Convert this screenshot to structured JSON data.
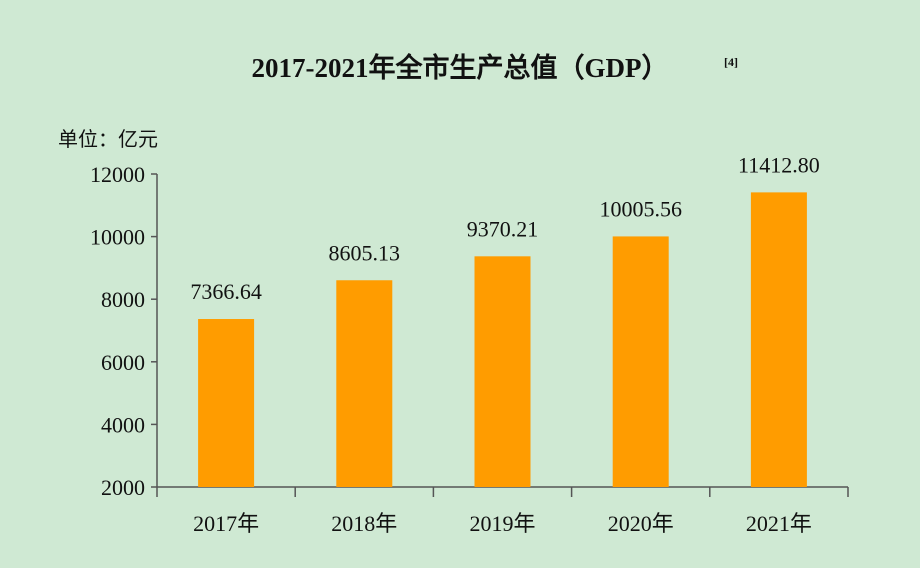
{
  "chart_data": {
    "type": "bar",
    "title": "2017-2021年全市生产总值（GDP）",
    "title_superscript": "[4]",
    "unit_label": "单位：亿元",
    "categories": [
      "2017年",
      "2018年",
      "2019年",
      "2020年",
      "2021年"
    ],
    "values": [
      7366.64,
      8605.13,
      9370.21,
      10005.56,
      11412.8
    ],
    "value_labels": [
      "7366.64",
      "8605.13",
      "9370.21",
      "10005.56",
      "11412.80"
    ],
    "ylim": [
      2000,
      12000
    ],
    "yticks": [
      "2000",
      "4000",
      "6000",
      "8000",
      "10000",
      "12000"
    ],
    "grid": false,
    "legend": "none",
    "colors": {
      "bar": "#FF9C00",
      "background": "#CFE9D3",
      "axis": "#555555"
    }
  }
}
